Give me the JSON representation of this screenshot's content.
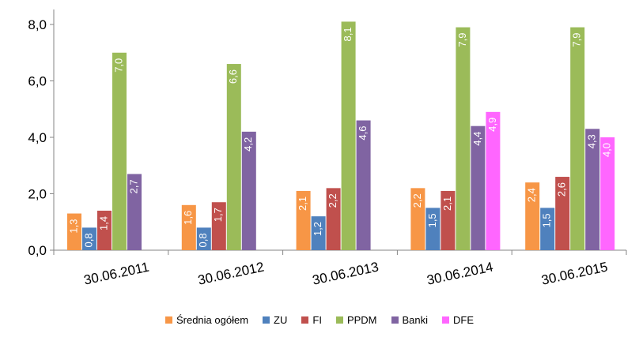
{
  "chart_data": {
    "type": "bar",
    "categories": [
      "30.06.2011",
      "30.06.2012",
      "30.06.2013",
      "30.06.2014",
      "30.06.2015"
    ],
    "series": [
      {
        "name": "Średnia ogółem",
        "color": "#F79646",
        "values": [
          1.3,
          1.6,
          2.1,
          2.2,
          2.4
        ],
        "labels": [
          "1,3",
          "1,6",
          "2,1",
          "2,2",
          "2,4"
        ]
      },
      {
        "name": "ZU",
        "color": "#4F81BD",
        "values": [
          0.8,
          0.8,
          1.2,
          1.5,
          1.5
        ],
        "labels": [
          "0,8",
          "0,8",
          "1,2",
          "1,5",
          "1,5"
        ]
      },
      {
        "name": "FI",
        "color": "#C0504D",
        "values": [
          1.4,
          1.7,
          2.2,
          2.1,
          2.6
        ],
        "labels": [
          "1,4",
          "1,7",
          "2,2",
          "2,1",
          "2,6"
        ]
      },
      {
        "name": "PPDM",
        "color": "#9BBB59",
        "values": [
          7.0,
          6.6,
          8.1,
          7.9,
          7.9
        ],
        "labels": [
          "7,0",
          "6,6",
          "8,1",
          "7,9",
          "7,9"
        ]
      },
      {
        "name": "Banki",
        "color": "#8064A2",
        "values": [
          2.7,
          4.2,
          4.6,
          4.4,
          4.3
        ],
        "labels": [
          "2,7",
          "4,2",
          "4,6",
          "4,4",
          "4,3"
        ]
      },
      {
        "name": "DFE",
        "color": "#FF66FF",
        "values": [
          null,
          null,
          null,
          4.9,
          4.0
        ],
        "labels": [
          "",
          "",
          "",
          "4,9",
          "4,0"
        ]
      }
    ],
    "yticks": [
      "0,0",
      "2,0",
      "4,0",
      "6,0",
      "8,0"
    ],
    "ytick_values": [
      0,
      2,
      4,
      6,
      8
    ],
    "ylim": [
      0,
      8.2
    ],
    "grid": false,
    "legend_position": "bottom",
    "title": "",
    "xlabel": "",
    "ylabel": ""
  }
}
